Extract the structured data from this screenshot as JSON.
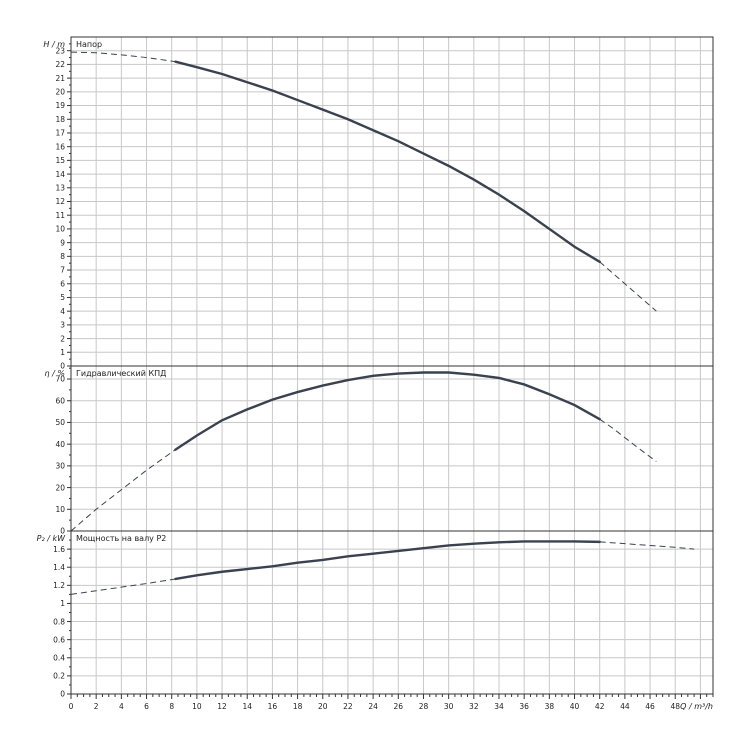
{
  "chart_data": [
    {
      "type": "line",
      "title": "Напор",
      "ylabel": "H / m",
      "xlim": [
        0,
        51
      ],
      "ylim": [
        0,
        24
      ],
      "yticks": [
        0,
        1,
        2,
        3,
        4,
        5,
        6,
        7,
        8,
        9,
        10,
        11,
        12,
        13,
        14,
        15,
        16,
        17,
        18,
        19,
        20,
        21,
        22,
        23
      ],
      "series": [
        {
          "style": "dashed",
          "x": [
            0,
            2,
            4,
            6,
            8.3
          ],
          "y": [
            22.9,
            22.85,
            22.7,
            22.5,
            22.2
          ]
        },
        {
          "style": "solid",
          "x": [
            8.3,
            10,
            12,
            14,
            16,
            18,
            20,
            22,
            24,
            26,
            28,
            30,
            32,
            34,
            36,
            38,
            40,
            42
          ],
          "y": [
            22.2,
            21.8,
            21.3,
            20.7,
            20.1,
            19.4,
            18.7,
            18.0,
            17.2,
            16.4,
            15.5,
            14.6,
            13.6,
            12.5,
            11.3,
            10.0,
            8.7,
            7.6
          ]
        },
        {
          "style": "dashed",
          "x": [
            42,
            43,
            44,
            45,
            46.5
          ],
          "y": [
            7.6,
            6.8,
            6.0,
            5.2,
            4.0
          ]
        }
      ]
    },
    {
      "type": "line",
      "title": "Гидравлический КПД",
      "ylabel": "η / %",
      "xlim": [
        0,
        51
      ],
      "ylim": [
        0,
        76
      ],
      "yticks": [
        0,
        10,
        20,
        30,
        40,
        50,
        60,
        70
      ],
      "series": [
        {
          "style": "dashed",
          "x": [
            0,
            2,
            4,
            6,
            8.3
          ],
          "y": [
            0,
            10,
            19,
            28,
            37.5
          ]
        },
        {
          "style": "solid",
          "x": [
            8.3,
            10,
            12,
            14,
            16,
            18,
            20,
            22,
            24,
            26,
            28,
            30,
            32,
            34,
            36,
            38,
            40,
            42
          ],
          "y": [
            37.5,
            44,
            51,
            56,
            60.5,
            64,
            67,
            69.5,
            71.5,
            72.5,
            73,
            73,
            72,
            70.5,
            67.5,
            63,
            58,
            51.5
          ]
        },
        {
          "style": "dashed",
          "x": [
            42,
            43,
            44,
            45,
            46.5
          ],
          "y": [
            51.5,
            47.5,
            43,
            38.5,
            32
          ]
        }
      ]
    },
    {
      "type": "line",
      "title": "Мощность на валу P2",
      "ylabel": "P₂ / kW",
      "xlabel": "Q / m³/h",
      "xlim": [
        0,
        51
      ],
      "ylim": [
        0,
        1.8
      ],
      "xticks": [
        0,
        2,
        4,
        6,
        8,
        10,
        12,
        14,
        16,
        18,
        20,
        22,
        24,
        26,
        28,
        30,
        32,
        34,
        36,
        38,
        40,
        42,
        44,
        46,
        48
      ],
      "yticks": [
        0,
        0.2,
        0.4,
        0.6,
        0.8,
        1,
        1.2,
        1.4,
        1.6
      ],
      "series": [
        {
          "style": "dashed",
          "x": [
            0,
            2,
            4,
            6,
            8.3
          ],
          "y": [
            1.1,
            1.14,
            1.18,
            1.22,
            1.27
          ]
        },
        {
          "style": "solid",
          "x": [
            8.3,
            10,
            12,
            14,
            16,
            18,
            20,
            22,
            24,
            26,
            28,
            30,
            32,
            34,
            36,
            38,
            40,
            42
          ],
          "y": [
            1.27,
            1.31,
            1.35,
            1.38,
            1.41,
            1.45,
            1.48,
            1.52,
            1.55,
            1.58,
            1.61,
            1.64,
            1.66,
            1.675,
            1.685,
            1.685,
            1.685,
            1.68
          ]
        },
        {
          "style": "dashed",
          "x": [
            42,
            44,
            46,
            48,
            49.5
          ],
          "y": [
            1.68,
            1.66,
            1.64,
            1.62,
            1.6
          ]
        }
      ]
    }
  ]
}
